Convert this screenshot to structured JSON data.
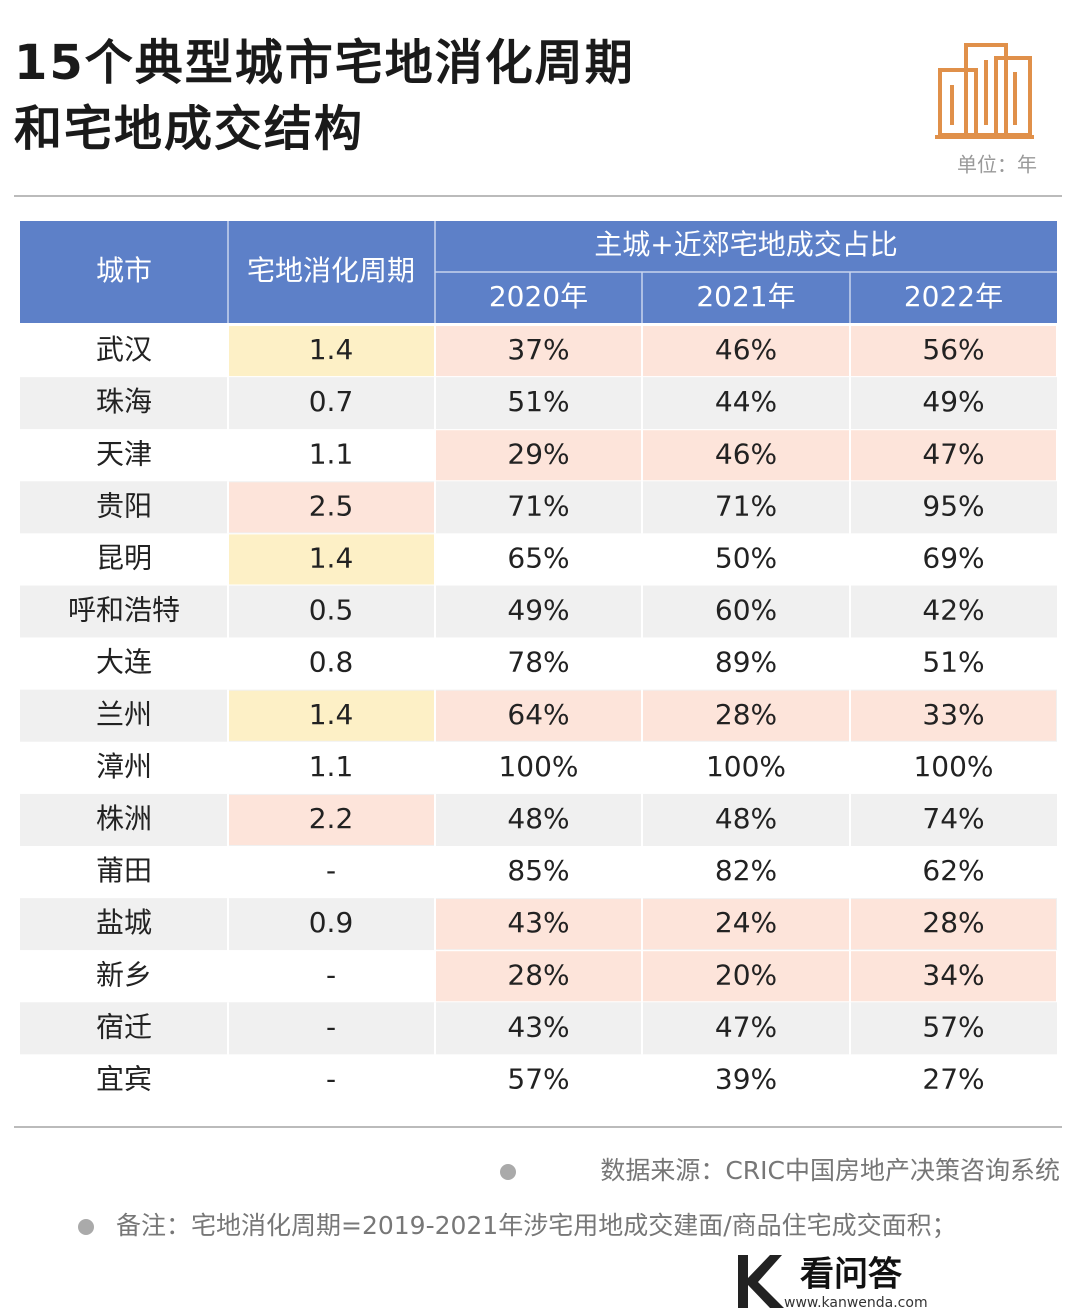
{
  "header": {
    "title_lines": [
      "15个典型城市宅地消化周期",
      "和宅地成交结构"
    ],
    "unit": "单位：年"
  },
  "table": {
    "columns": [
      "城市",
      "宅地消化周期",
      "主城+近郊宅地成交占比"
    ],
    "years": [
      "2020年",
      "2021年",
      "2022年"
    ],
    "rows": [
      {
        "city": "武汉",
        "cycle": "1.4",
        "shares": [
          "37%",
          "46%",
          "56%"
        ],
        "cycle_color": "#fdf0c6",
        "share_color": "#fde4da"
      },
      {
        "city": "珠海",
        "cycle": "0.7",
        "shares": [
          "51%",
          "44%",
          "49%"
        ],
        "cycle_color": null,
        "share_color": null
      },
      {
        "city": "天津",
        "cycle": "1.1",
        "shares": [
          "29%",
          "46%",
          "47%"
        ],
        "cycle_color": null,
        "share_color": "#fde4da"
      },
      {
        "city": "贵阳",
        "cycle": "2.5",
        "shares": [
          "71%",
          "71%",
          "95%"
        ],
        "cycle_color": "#fde4da",
        "share_color": null
      },
      {
        "city": "昆明",
        "cycle": "1.4",
        "shares": [
          "65%",
          "50%",
          "69%"
        ],
        "cycle_color": "#fdf0c6",
        "share_color": null
      },
      {
        "city": "呼和浩特",
        "cycle": "0.5",
        "shares": [
          "49%",
          "60%",
          "42%"
        ],
        "cycle_color": null,
        "share_color": null
      },
      {
        "city": "大连",
        "cycle": "0.8",
        "shares": [
          "78%",
          "89%",
          "51%"
        ],
        "cycle_color": null,
        "share_color": null
      },
      {
        "city": "兰州",
        "cycle": "1.4",
        "shares": [
          "64%",
          "28%",
          "33%"
        ],
        "cycle_color": "#fdf0c6",
        "share_color": "#fde4da"
      },
      {
        "city": "漳州",
        "cycle": "1.1",
        "shares": [
          "100%",
          "100%",
          "100%"
        ],
        "cycle_color": null,
        "share_color": null
      },
      {
        "city": "株洲",
        "cycle": "2.2",
        "shares": [
          "48%",
          "48%",
          "74%"
        ],
        "cycle_color": "#fde4da",
        "share_color": null
      },
      {
        "city": "莆田",
        "cycle": "-",
        "shares": [
          "85%",
          "82%",
          "62%"
        ],
        "cycle_color": null,
        "share_color": null
      },
      {
        "city": "盐城",
        "cycle": "0.9",
        "shares": [
          "43%",
          "24%",
          "28%"
        ],
        "cycle_color": null,
        "share_color": "#fde4da"
      },
      {
        "city": "新乡",
        "cycle": "-",
        "shares": [
          "28%",
          "20%",
          "34%"
        ],
        "cycle_color": null,
        "share_color": "#fde4da"
      },
      {
        "city": "宿迁",
        "cycle": "-",
        "shares": [
          "43%",
          "47%",
          "57%"
        ],
        "cycle_color": null,
        "share_color": null
      },
      {
        "city": "宜宾",
        "cycle": "-",
        "shares": [
          "57%",
          "39%",
          "27%"
        ],
        "cycle_color": null,
        "share_color": null
      }
    ]
  },
  "footer": {
    "source": "数据来源：CRIC中国房地产决策咨询系统",
    "note": "备注：宅地消化周期=2019-2021年涉宅用地成交建面/商品住宅成交面积；",
    "logo": "看问答",
    "logo_url": "www.kanwenda.com"
  }
}
